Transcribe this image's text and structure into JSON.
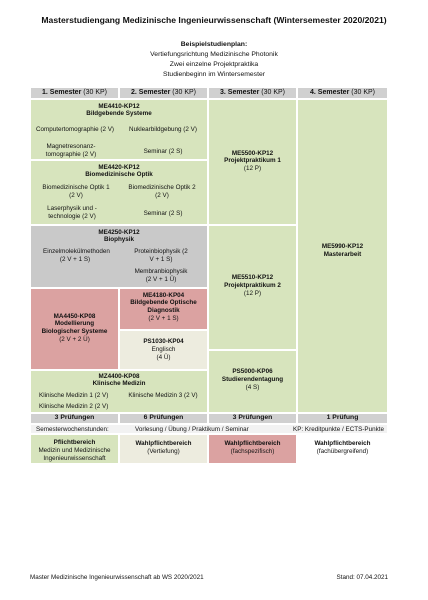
{
  "title": "Masterstudiengang Medizinische Ingenieurwissenschaft (Wintersemester 2020/2021)",
  "plan": {
    "heading": "Beispielstudienplan:",
    "lines": [
      "Vertiefungsrichtung Medizinische Photonik",
      "Zwei einzelne Projektpraktika",
      "Studienbeginn im Wintersemester"
    ]
  },
  "semesters": [
    {
      "label": "1. Semester",
      "kp": "(30 KP)"
    },
    {
      "label": "2. Semester",
      "kp": "(30 KP)"
    },
    {
      "label": "3. Semester",
      "kp": "(30 KP)"
    },
    {
      "label": "4. Semester",
      "kp": "(30 KP)"
    }
  ],
  "modules": [
    {
      "code": "ME4410-KP12",
      "title": "Bildgebende Systeme",
      "courses": [
        "Computertomographie (2 V)",
        "Nuklearbildgebung (2 V)",
        "Magnetresonanz-tomographie (2 V)",
        "Seminar (2 S)"
      ]
    },
    {
      "code": "ME4420-KP12",
      "title": "Biomedizinische Optik",
      "courses": [
        "Biomedizinische Optik 1 (2 V)",
        "Biomedizinische Optik 2 (2 V)",
        "Laserphysik und -technologie (2 V)",
        "Seminar (2 S)"
      ]
    },
    {
      "code": "ME4250-KP12",
      "title": "Biophysik",
      "courses": [
        "Einzelmolekülmethoden (2 V + 1 S)",
        "Proteinbiophysik (2 V + 1 S)",
        "Membranbiophysik (2 V + 1 Ü)"
      ]
    },
    {
      "code": "MA4450-KP08",
      "title": "Modellierung Biologischer Systeme",
      "hours": "(2 V + 2 Ü)"
    },
    {
      "code": "ME4180-KP04",
      "title": "Bildgebende Optische Diagnostik",
      "hours": "(2 V + 1 S)"
    },
    {
      "code": "PS1030-KP04",
      "title": "Englisch",
      "hours": "(4 Ü)"
    },
    {
      "code": "MZ4400-KP08",
      "title": "Klinische Medizin",
      "courses": [
        "Klinische Medizin 1 (2 V)",
        "Klinische Medizin 3 (2 V)",
        "Klinische Medizin 2 (2 V)"
      ]
    },
    {
      "code": "ME5500-KP12",
      "title": "Projektpraktikum 1",
      "hours": "(12 P)"
    },
    {
      "code": "ME5510-KP12",
      "title": "Projektpraktikum 2",
      "hours": "(12 P)"
    },
    {
      "code": "PS5000-KP06",
      "title": "Studierendentagung",
      "hours": "(4 S)"
    },
    {
      "code": "ME5990-KP12",
      "title": "Masterarbeit"
    }
  ],
  "exams": [
    "3 Prüfungen",
    "6 Prüfungen",
    "3 Prüfungen",
    "1 Prüfung"
  ],
  "legend": {
    "sws": "Semesterwochenstunden:",
    "types": "Vorlesung / Übung / Praktikum / Seminar",
    "kp": "KP: Kreditpunkte / ECTS-Punkte"
  },
  "areas": [
    {
      "title": "Pflichtbereich",
      "sub": "Medizin und Medizinische Ingenieurwissenschaft"
    },
    {
      "title": "Wahlpflichtbereich",
      "sub": "(Vertiefung)"
    },
    {
      "title": "Wahlpflichtbereich",
      "sub": "(fachspezifisch)"
    },
    {
      "title": "Wahlpflichtbereich",
      "sub": "(fachübergreifend)"
    }
  ],
  "footer": {
    "left": "Master Medizinische Ingenieurwissenschaft ab WS 2020/2021",
    "right": "Stand: 07.04.2021"
  }
}
